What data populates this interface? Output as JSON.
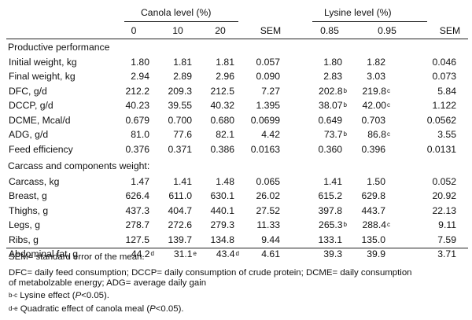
{
  "table": {
    "group_headers": [
      {
        "label": "Canola level (%)"
      },
      {
        "label": "Lysine level (%)"
      }
    ],
    "column_headers": [
      "0",
      "10",
      "20",
      "SEM",
      "0.85",
      "0.95",
      "SEM"
    ],
    "sections": [
      {
        "title": "Productive performance",
        "rows": [
          {
            "label": "Initial weight, kg",
            "cells": [
              {
                "v": "1.80"
              },
              {
                "v": "1.81"
              },
              {
                "v": "1.81"
              },
              {
                "v": "0.057"
              },
              {
                "v": "1.80"
              },
              {
                "v": "1.82"
              },
              {
                "v": "0.046"
              }
            ]
          },
          {
            "label": "Final weight, kg",
            "cells": [
              {
                "v": "2.94"
              },
              {
                "v": "2.89"
              },
              {
                "v": "2.96"
              },
              {
                "v": "0.090"
              },
              {
                "v": "2.83"
              },
              {
                "v": "3.03"
              },
              {
                "v": "0.073"
              }
            ]
          },
          {
            "label": "DFC, g/d",
            "cells": [
              {
                "v": "212.2"
              },
              {
                "v": "209.3"
              },
              {
                "v": "212.5"
              },
              {
                "v": "7.27"
              },
              {
                "v": "202.8",
                "s": "b"
              },
              {
                "v": "219.8",
                "s": "c"
              },
              {
                "v": "5.84"
              }
            ]
          },
          {
            "label": "DCCP, g/d",
            "cells": [
              {
                "v": "40.23"
              },
              {
                "v": "39.55"
              },
              {
                "v": "40.32"
              },
              {
                "v": "1.395"
              },
              {
                "v": "38.07",
                "s": "b"
              },
              {
                "v": "42.00",
                "s": "c"
              },
              {
                "v": "1.122"
              }
            ]
          },
          {
            "label": "DCME, Mcal/d",
            "cells": [
              {
                "v": "0.679"
              },
              {
                "v": "0.700"
              },
              {
                "v": "0.680"
              },
              {
                "v": "0.0699"
              },
              {
                "v": "0.649"
              },
              {
                "v": "0.703"
              },
              {
                "v": "0.0562"
              }
            ]
          },
          {
            "label": "ADG, g/d",
            "cells": [
              {
                "v": "81.0"
              },
              {
                "v": "77.6"
              },
              {
                "v": "82.1"
              },
              {
                "v": "4.42"
              },
              {
                "v": "73.7",
                "s": "b"
              },
              {
                "v": "86.8",
                "s": "c"
              },
              {
                "v": "3.55"
              }
            ]
          },
          {
            "label": "Feed efficiency",
            "cells": [
              {
                "v": "0.376"
              },
              {
                "v": "0.371"
              },
              {
                "v": "0.386"
              },
              {
                "v": "0.0163"
              },
              {
                "v": "0.360"
              },
              {
                "v": "0.396"
              },
              {
                "v": "0.0131"
              }
            ]
          }
        ]
      },
      {
        "title": "Carcass and components weight:",
        "rows": [
          {
            "label": "Carcass, kg",
            "cells": [
              {
                "v": "1.47"
              },
              {
                "v": "1.41"
              },
              {
                "v": "1.48"
              },
              {
                "v": "0.065"
              },
              {
                "v": "1.41"
              },
              {
                "v": "1.50"
              },
              {
                "v": "0.052"
              }
            ]
          },
          {
            "label": "Breast, g",
            "cells": [
              {
                "v": "626.4"
              },
              {
                "v": "611.0"
              },
              {
                "v": "630.1"
              },
              {
                "v": "26.02"
              },
              {
                "v": "615.2"
              },
              {
                "v": "629.8"
              },
              {
                "v": "20.92"
              }
            ]
          },
          {
            "label": "Thighs, g",
            "cells": [
              {
                "v": "437.3"
              },
              {
                "v": "404.7"
              },
              {
                "v": "440.1"
              },
              {
                "v": "27.52"
              },
              {
                "v": "397.8"
              },
              {
                "v": "443.7"
              },
              {
                "v": "22.13"
              }
            ]
          },
          {
            "label": "Legs, g",
            "cells": [
              {
                "v": "278.7"
              },
              {
                "v": "272.6"
              },
              {
                "v": "279.3"
              },
              {
                "v": "11.33"
              },
              {
                "v": "265.3",
                "s": "b"
              },
              {
                "v": "288.4",
                "s": "c"
              },
              {
                "v": "9.11"
              }
            ]
          },
          {
            "label": "Ribs, g",
            "cells": [
              {
                "v": "127.5"
              },
              {
                "v": "139.7"
              },
              {
                "v": "134.8"
              },
              {
                "v": "9.44"
              },
              {
                "v": "133.1"
              },
              {
                "v": "135.0"
              },
              {
                "v": "7.59"
              }
            ]
          },
          {
            "label": "Abdominal fat, g",
            "cells": [
              {
                "v": "44.2",
                "s": "d"
              },
              {
                "v": "31.1",
                "s": "e"
              },
              {
                "v": "43.4",
                "s": "d"
              },
              {
                "v": "4.61"
              },
              {
                "v": "39.3"
              },
              {
                "v": "39.9"
              },
              {
                "v": "3.71"
              }
            ]
          }
        ]
      }
    ]
  },
  "footnotes": {
    "sem": "SEM= standard error of the mean.",
    "abbrev_line1": "DFC= daily feed consumption; DCCP= daily consumption of crude protein; DCME= daily consumption",
    "abbrev_line2": "of metabolzable energy; ADG= average daily gain",
    "lysine_sup": "b-c",
    "lysine_pre": " Lysine effect (",
    "lysine_p": "P",
    "lysine_post": "<0.05).",
    "canola_sup": "d-e",
    "canola_pre": " Quadratic effect of  canola meal (",
    "canola_p": "P",
    "canola_post": "<0.05)."
  }
}
